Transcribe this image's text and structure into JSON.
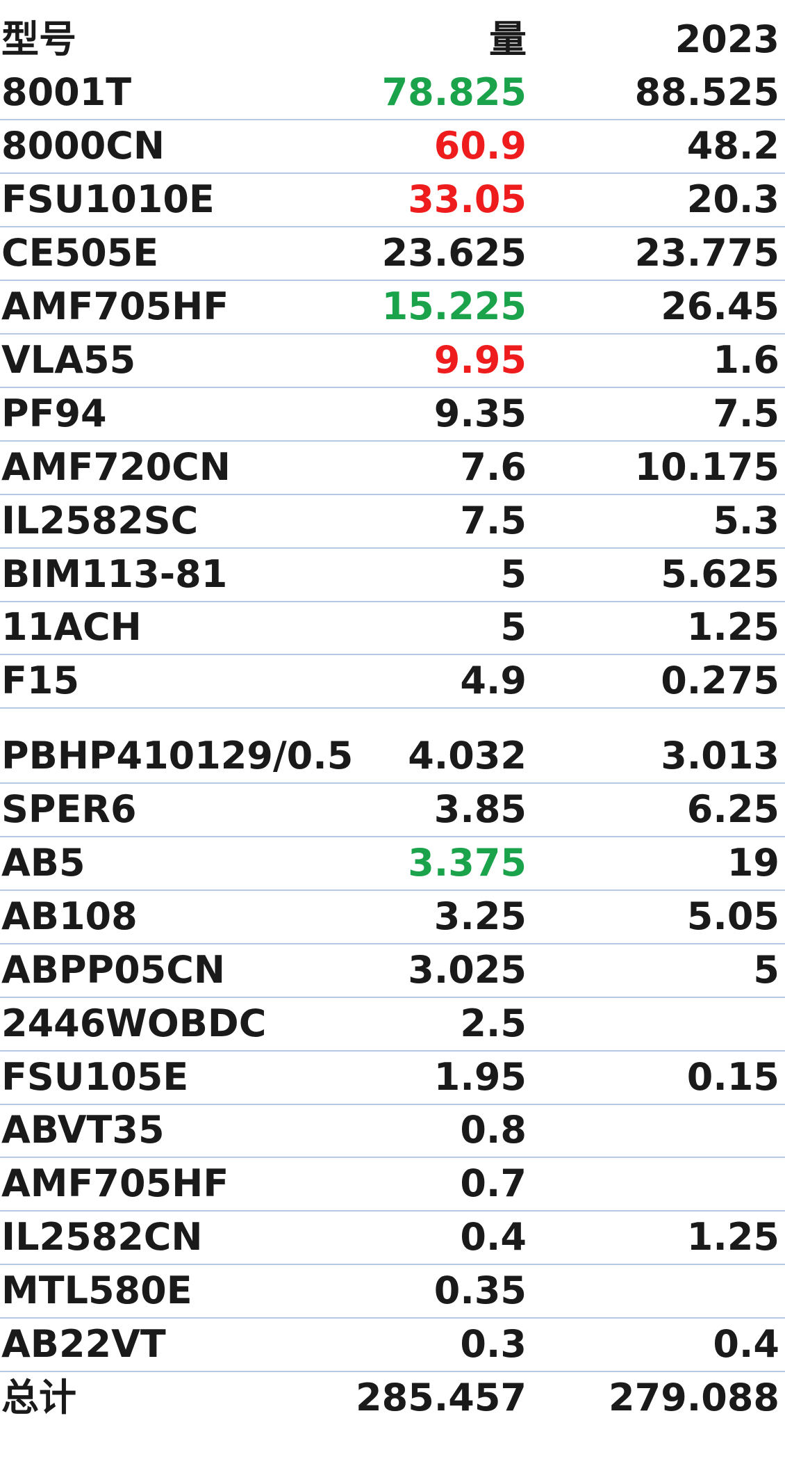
{
  "header": {
    "model": "型号",
    "qty": "量",
    "y2023": "2023"
  },
  "rows": [
    {
      "model": "8001T",
      "qty": "78.825",
      "y2023": "88.525",
      "qty_color": "green"
    },
    {
      "model": "8000CN",
      "qty": "60.9",
      "y2023": "48.2",
      "qty_color": "red"
    },
    {
      "model": "FSU1010E",
      "qty": "33.05",
      "y2023": "20.3",
      "qty_color": "red"
    },
    {
      "model": "CE505E",
      "qty": "23.625",
      "y2023": "23.775",
      "qty_color": ""
    },
    {
      "model": "AMF705HF",
      "qty": "15.225",
      "y2023": "26.45",
      "qty_color": "green"
    },
    {
      "model": "VLA55",
      "qty": "9.95",
      "y2023": "1.6",
      "qty_color": "red"
    },
    {
      "model": "PF94",
      "qty": "9.35",
      "y2023": "7.5",
      "qty_color": ""
    },
    {
      "model": "AMF720CN",
      "qty": "7.6",
      "y2023": "10.175",
      "qty_color": ""
    },
    {
      "model": "IL2582SC",
      "qty": "7.5",
      "y2023": "5.3",
      "qty_color": ""
    },
    {
      "model": "BIM113-81",
      "qty": "5",
      "y2023": "5.625",
      "qty_color": ""
    },
    {
      "model": "11ACH",
      "qty": "5",
      "y2023": "1.25",
      "qty_color": ""
    },
    {
      "model": "F15",
      "qty": "4.9",
      "y2023": "0.275",
      "qty_color": ""
    },
    {
      "model": "PBHP410129/0.5",
      "qty": "4.032",
      "y2023": "3.013",
      "qty_color": ""
    },
    {
      "model": "SPER6",
      "qty": "3.85",
      "y2023": "6.25",
      "qty_color": ""
    },
    {
      "model": "AB5",
      "qty": "3.375",
      "y2023": "19",
      "qty_color": "green"
    },
    {
      "model": "AB108",
      "qty": "3.25",
      "y2023": "5.05",
      "qty_color": ""
    },
    {
      "model": "ABPP05CN",
      "qty": "3.025",
      "y2023": "5",
      "qty_color": ""
    },
    {
      "model": "2446WOBDC",
      "qty": "2.5",
      "y2023": "",
      "qty_color": ""
    },
    {
      "model": "FSU105E",
      "qty": "1.95",
      "y2023": "0.15",
      "qty_color": ""
    },
    {
      "model": "ABVT35",
      "qty": "0.8",
      "y2023": "",
      "qty_color": ""
    },
    {
      "model": "AMF705HF",
      "qty": "0.7",
      "y2023": "",
      "qty_color": ""
    },
    {
      "model": "IL2582CN",
      "qty": "0.4",
      "y2023": "1.25",
      "qty_color": ""
    },
    {
      "model": "MTL580E",
      "qty": "0.35",
      "y2023": "",
      "qty_color": ""
    },
    {
      "model": "AB22VT",
      "qty": "0.3",
      "y2023": "0.4",
      "qty_color": ""
    }
  ],
  "total": {
    "label": "总计",
    "qty": "285.457",
    "y2023": "279.088"
  },
  "colors": {
    "green": "#1aa34a",
    "red": "#ee1c1c",
    "text": "#1a1a1a",
    "grid": "#b7c7e6"
  }
}
